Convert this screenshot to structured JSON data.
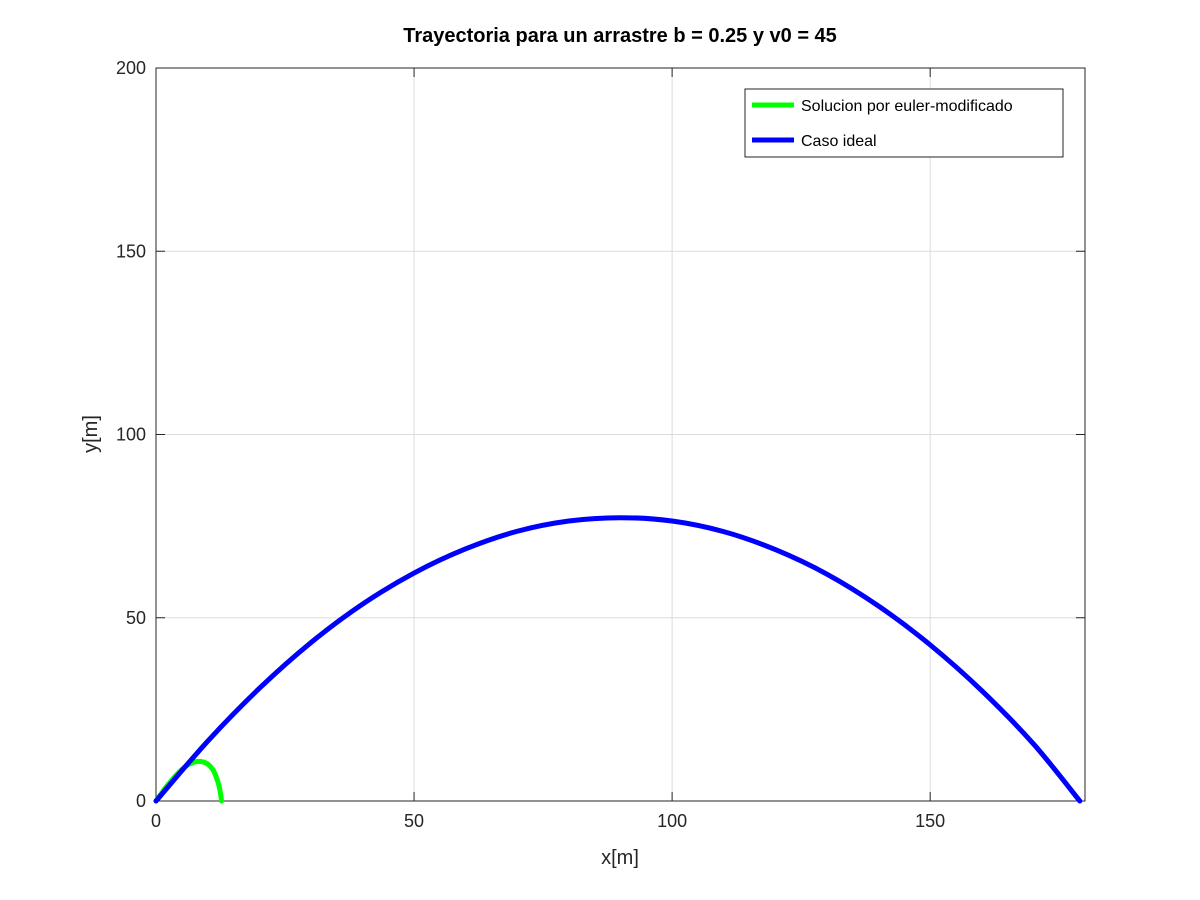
{
  "chart_data": {
    "type": "line",
    "title": "Trayectoria para un arrastre b = 0.25 y  v0 = 45",
    "xlabel": "x[m]",
    "ylabel": "y[m]",
    "xlim": [
      0,
      180
    ],
    "ylim": [
      0,
      200
    ],
    "xticks": [
      0,
      50,
      100,
      150
    ],
    "yticks": [
      0,
      50,
      100,
      150,
      200
    ],
    "grid": true,
    "legend_position": "top-right",
    "series": [
      {
        "name": "Solucion por euler-modificado",
        "color": "#00ff00",
        "x": [
          0,
          1,
          2,
          3,
          4,
          5,
          6,
          7,
          8,
          9,
          10,
          11,
          11.6,
          12.2,
          12.5,
          12.7
        ],
        "y": [
          0,
          2.0,
          3.9,
          5.6,
          7.2,
          8.6,
          9.7,
          10.4,
          10.8,
          10.7,
          10.1,
          8.6,
          6.8,
          4.2,
          2.0,
          0
        ]
      },
      {
        "name": "Caso ideal",
        "color": "#0000ff",
        "x": [
          0,
          10,
          20,
          30,
          40,
          50,
          60,
          70,
          80,
          90,
          100,
          110,
          120,
          130,
          140,
          150,
          160,
          170,
          179
        ],
        "y": [
          0,
          16.3,
          30.7,
          43.2,
          53.7,
          62.2,
          68.8,
          73.6,
          76.4,
          77.3,
          76.4,
          73.5,
          68.6,
          61.9,
          53.2,
          42.6,
          30.1,
          15.6,
          0
        ]
      }
    ]
  }
}
